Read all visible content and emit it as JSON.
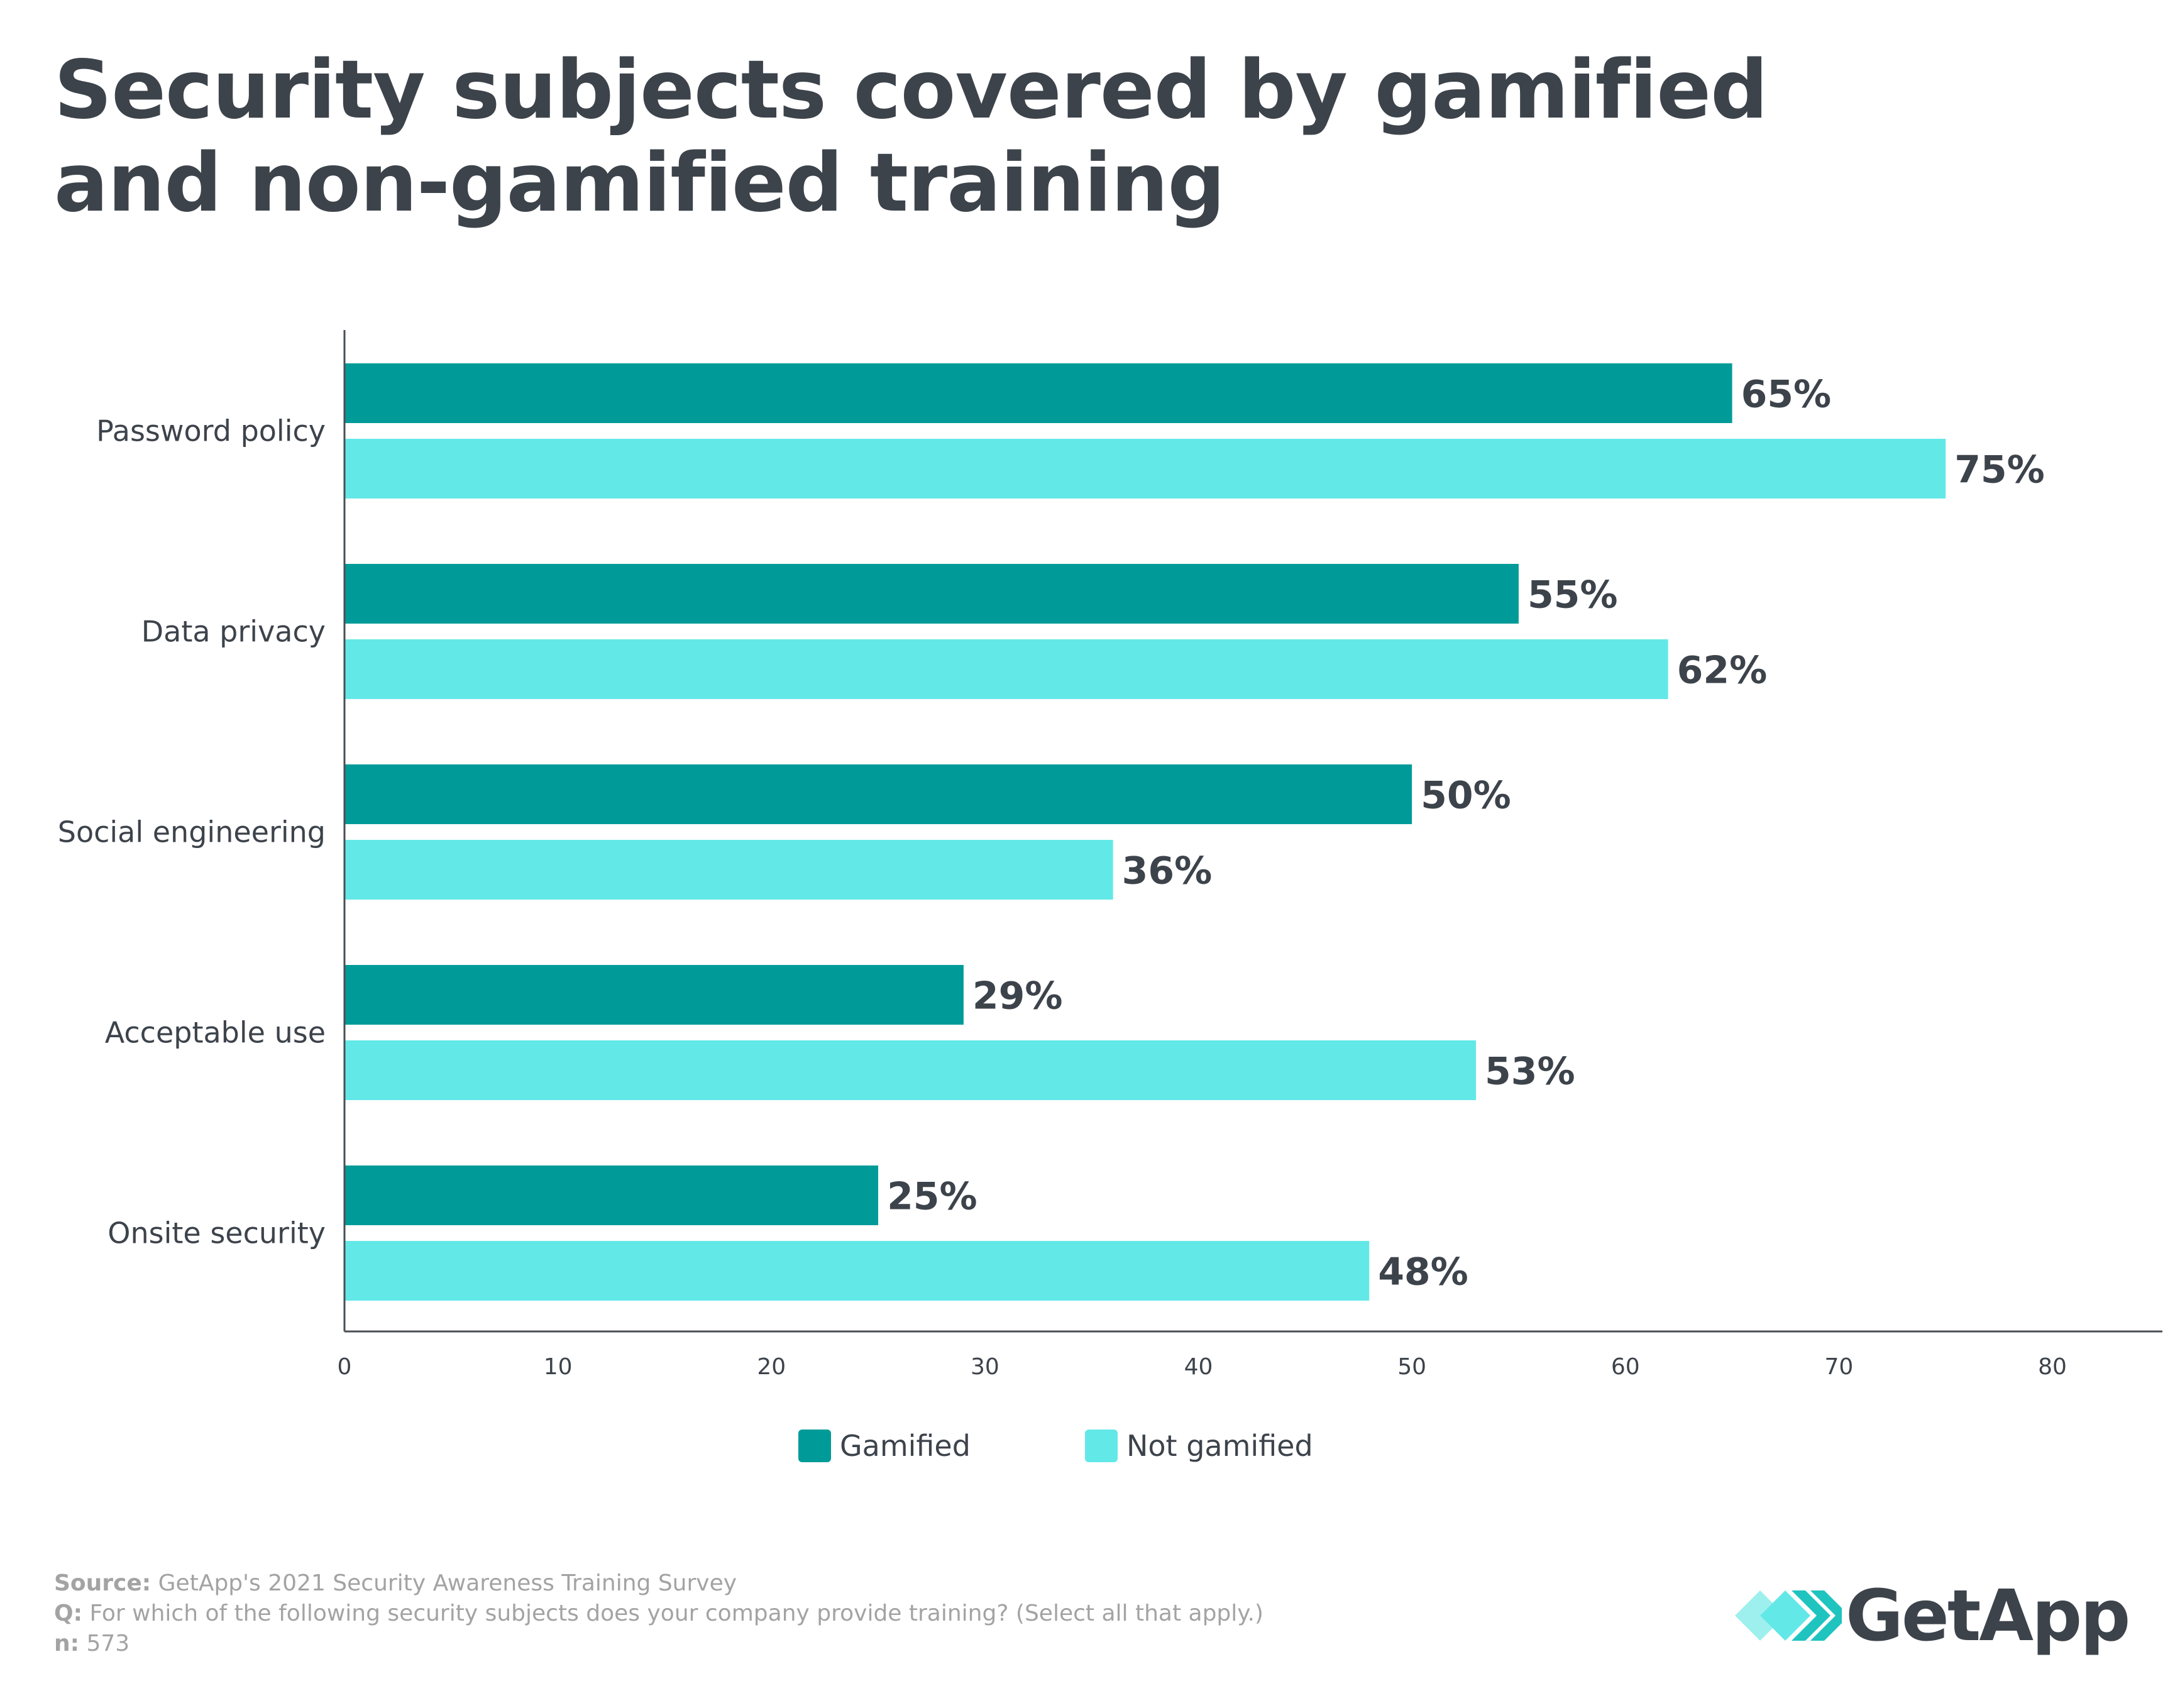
{
  "title": "Security subjects covered by gamified and non-gamified training",
  "chart_data": {
    "type": "bar",
    "orientation": "horizontal",
    "categories": [
      "Password policy",
      "Data privacy",
      "Social engineering",
      "Acceptable use",
      "Onsite security"
    ],
    "series": [
      {
        "name": "Gamified",
        "color": "#009b98",
        "values": [
          65,
          55,
          50,
          29,
          25
        ]
      },
      {
        "name": "Not gamified",
        "color": "#63e8e8",
        "values": [
          75,
          62,
          36,
          53,
          48
        ]
      }
    ],
    "value_suffix": "%",
    "xlim": [
      0,
      85
    ],
    "xticks": [
      0,
      10,
      20,
      30,
      40,
      50,
      60,
      70,
      80
    ],
    "legend_position": "bottom-center",
    "grid": false
  },
  "footer": {
    "source_label": "Source:",
    "source_text": "GetApp's 2021 Security Awareness Training Survey",
    "q_label": "Q:",
    "q_text": "For which of the following security subjects does your company provide training? (Select all that apply.)",
    "n_label": "n:",
    "n_text": "573"
  },
  "logo": {
    "text": "GetApp",
    "colors": [
      "#9ef0ee",
      "#63e8e8",
      "#1fc4bf"
    ]
  }
}
